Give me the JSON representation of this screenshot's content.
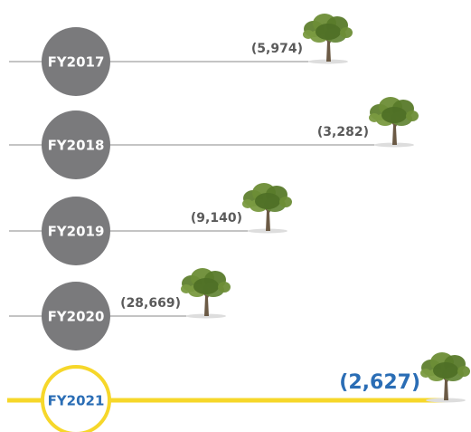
{
  "rows": [
    {
      "label": "FY2017",
      "value": "(5,974)"
    },
    {
      "label": "FY2018",
      "value": "(3,282)"
    },
    {
      "label": "FY2019",
      "value": "(9,140)"
    },
    {
      "label": "FY2020",
      "value": "(28,669)"
    },
    {
      "label": "FY2021",
      "value": "(2,627)"
    }
  ]
}
